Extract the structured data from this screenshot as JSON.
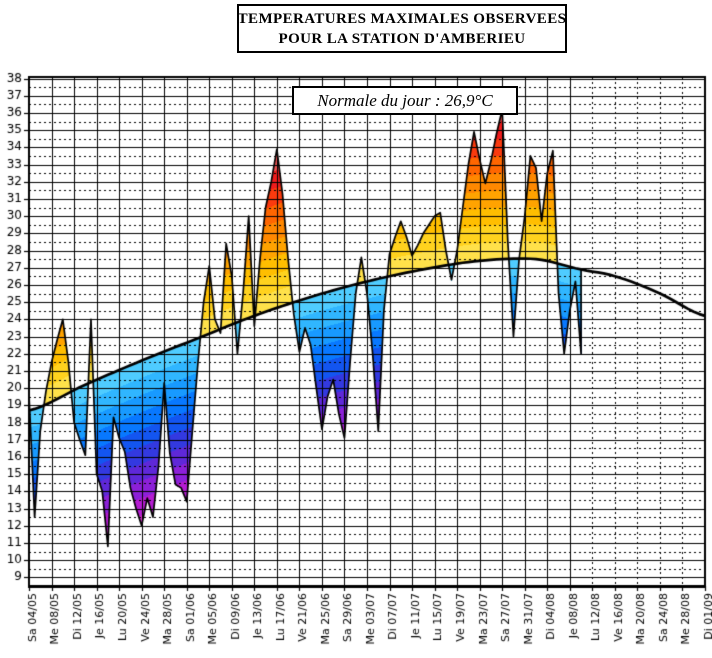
{
  "title": {
    "line1": "TEMPERATURES MAXIMALES OBSERVEES",
    "line2": "POUR LA STATION D'AMBERIEU"
  },
  "annotation": {
    "text": "Normale du jour : 26,9°C",
    "normal_value_today": 26.9
  },
  "chart_data": {
    "type": "area",
    "title": "Températures maximales observées pour la station d'Ambérieu",
    "unit": "°C",
    "y_axis": {
      "min": 9,
      "max": 38,
      "ylim": [
        8.5,
        38.5
      ],
      "major_step": 1,
      "minor_dotted_step": 0.5
    },
    "x_axis": {
      "total_days": 120,
      "tick_interval_days": 4,
      "tick_labels": [
        "Sa 04/05",
        "Me 08/05",
        "Di 12/05",
        "Je 16/05",
        "Lu 20/05",
        "Ve 24/05",
        "Ma 28/05",
        "Sa 01/06",
        "Me 05/06",
        "Di 09/06",
        "Je 13/06",
        "Lu 17/06",
        "Ve 21/06",
        "Ma 25/06",
        "Sa 29/06",
        "Me 03/07",
        "Di 07/07",
        "Je 11/07",
        "Lu 15/07",
        "Ve 19/07",
        "Ma 23/07",
        "Sa 27/07",
        "Me 31/07",
        "Di 04/08",
        "Je 08/08",
        "Lu 12/08",
        "Ve 16/08",
        "Ma 20/08",
        "Sa 24/08",
        "Me 28/08",
        "Di 01/09"
      ]
    },
    "series": {
      "name": "Température maximale observée",
      "first_day_label": "Sa 04/05",
      "last_day_label": "Sa 10/08",
      "values": [
        19.6,
        12.5,
        17.5,
        19.8,
        21.5,
        22.8,
        24.0,
        21.5,
        18.0,
        17.0,
        16.1,
        24.0,
        15.0,
        14.0,
        10.8,
        18.3,
        17.1,
        16.3,
        14.2,
        13.0,
        12.0,
        13.6,
        12.5,
        15.5,
        20.3,
        16.2,
        14.4,
        14.2,
        13.4,
        17.5,
        21.5,
        25.0,
        27.1,
        24.0,
        23.2,
        28.4,
        26.5,
        22.0,
        25.5,
        30.0,
        23.6,
        27.5,
        30.5,
        32.0,
        33.9,
        31.3,
        27.5,
        24.3,
        22.1,
        23.5,
        22.5,
        20.0,
        17.6,
        19.5,
        20.5,
        18.5,
        17.1,
        21.5,
        25.5,
        27.6,
        25.5,
        22.0,
        17.5,
        24.5,
        27.8,
        28.8,
        29.7,
        28.8,
        27.7,
        28.3,
        29.0,
        29.5,
        30.0,
        30.2,
        28.0,
        26.3,
        28.0,
        30.5,
        33.0,
        34.9,
        33.3,
        31.9,
        33.2,
        34.8,
        36.2,
        28.5,
        23.0,
        27.5,
        30.0,
        33.5,
        32.8,
        29.7,
        32.5,
        33.8,
        25.5,
        22.0,
        24.5,
        26.2,
        22.0
      ]
    },
    "normal_curve": {
      "name": "Normale du jour",
      "control_points": [
        [
          0,
          18.7
        ],
        [
          10,
          20.2
        ],
        [
          20,
          21.6
        ],
        [
          30,
          22.9
        ],
        [
          40,
          24.2
        ],
        [
          50,
          25.3
        ],
        [
          60,
          26.2
        ],
        [
          70,
          26.9
        ],
        [
          80,
          27.4
        ],
        [
          90,
          27.5
        ],
        [
          98,
          26.9
        ],
        [
          104,
          26.5
        ],
        [
          112,
          25.5
        ],
        [
          120,
          24.2
        ]
      ]
    },
    "legend_position": "none",
    "grid": {
      "major": "solid",
      "minor": "dotted",
      "future_vertical_ticks_dashed": true
    },
    "colors": {
      "background": "#ffffff",
      "grid": "#000000",
      "curve": "#000000",
      "warm_bands": [
        "#ffe14a",
        "#ffd21e",
        "#ffbe00",
        "#ffa300",
        "#ff8800",
        "#ff6600",
        "#fb3a0e",
        "#ee1c1c",
        "#ee5454",
        "#f18989"
      ],
      "cool_bands": [
        "#4fccff",
        "#30b6ff",
        "#189aff",
        "#0878ff",
        "#1355f0",
        "#3339e0",
        "#5f28d8",
        "#8c20d8",
        "#b51cd2",
        "#d42fc8"
      ]
    }
  }
}
